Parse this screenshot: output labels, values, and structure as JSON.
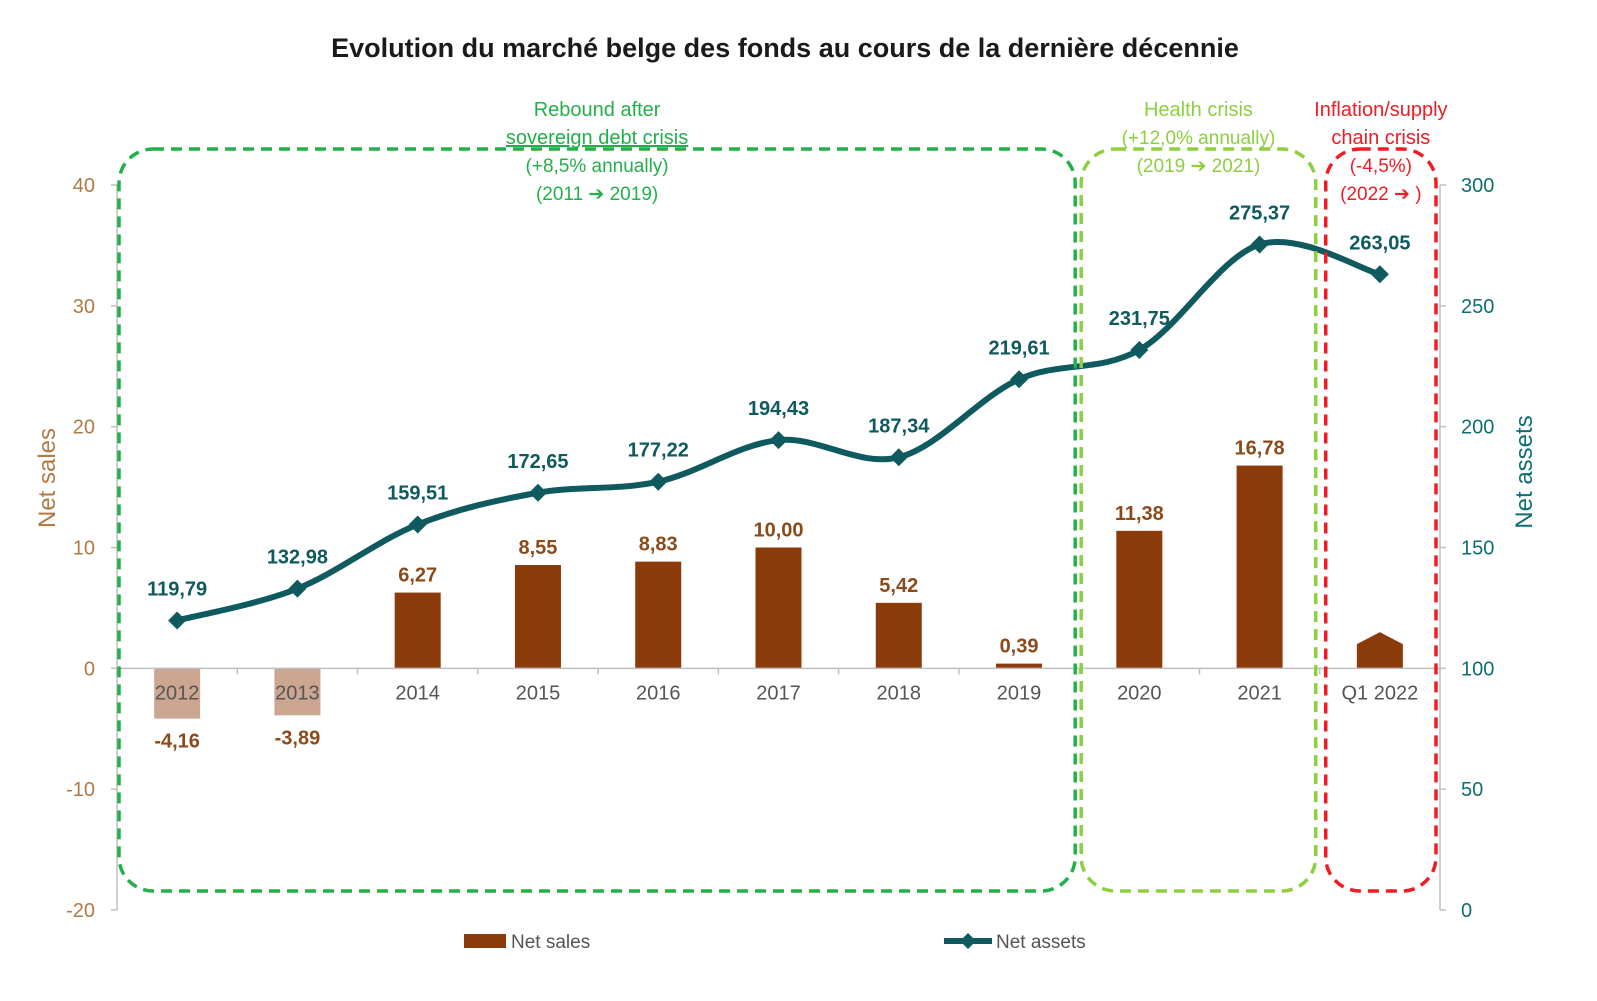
{
  "chart_data": {
    "type": "bar+line",
    "title": "Evolution du marché belge des fonds au cours de la dernière décennie",
    "categories": [
      "2012",
      "2013",
      "2014",
      "2015",
      "2016",
      "2017",
      "2018",
      "2019",
      "2020",
      "2021",
      "Q1 2022"
    ],
    "series": [
      {
        "name": "Net sales",
        "type": "bar",
        "axis": "left",
        "values": [
          -4.16,
          -3.89,
          6.27,
          8.55,
          8.83,
          10.0,
          5.42,
          0.39,
          11.38,
          16.78,
          2.0
        ],
        "labels": [
          "-4,16",
          "-3,89",
          "6,27",
          "8,55",
          "8,83",
          "10,00",
          "5,42",
          "0,39",
          "11,38",
          "16,78",
          ""
        ]
      },
      {
        "name": "Net assets",
        "type": "line",
        "axis": "right",
        "values": [
          119.79,
          132.98,
          159.51,
          172.65,
          177.22,
          194.43,
          187.34,
          219.61,
          231.75,
          275.37,
          263.05
        ],
        "labels": [
          "119,79",
          "132,98",
          "159,51",
          "172,65",
          "177,22",
          "194,43",
          "187,34",
          "219,61",
          "231,75",
          "275,37",
          "263,05"
        ]
      }
    ],
    "y_left": {
      "label": "Net sales",
      "min": -20,
      "max": 40,
      "ticks": [
        -20,
        -10,
        0,
        10,
        20,
        30,
        40
      ],
      "tick_labels": [
        "-20",
        "-10",
        "0",
        "10",
        "20",
        "30",
        "40"
      ]
    },
    "y_right": {
      "label": "Net assets",
      "min": 0,
      "max": 300,
      "ticks": [
        0,
        50,
        100,
        150,
        200,
        250,
        300
      ],
      "tick_labels": [
        "0",
        "50",
        "100",
        "150",
        "200",
        "250",
        "300"
      ]
    },
    "legend": {
      "position": "bottom",
      "items": [
        "Net sales",
        "Net assets"
      ]
    },
    "annotations": [
      {
        "lines": [
          "Rebound after",
          "sovereign debt crisis",
          "(+8,5% annually)",
          "(2011 ➔ 2019)"
        ],
        "from": "2012",
        "to": "2019",
        "color": "#22b04b"
      },
      {
        "lines": [
          "Health crisis",
          "(+12,0% annually)",
          "(2019 ➔ 2021)"
        ],
        "from": "2020",
        "to": "2021",
        "color": "#8dcf3f"
      },
      {
        "lines": [
          "Inflation/supply",
          "chain crisis",
          "(-4,5%)",
          "(2022 ➔ )"
        ],
        "from": "Q1 2022",
        "to": "Q1 2022",
        "color": "#ee1c25"
      }
    ],
    "colors": {
      "bar": "#8b3a0a",
      "line": "#0e5a5e",
      "left_axis": "#b07a46",
      "right_axis": "#0e6e72"
    }
  }
}
